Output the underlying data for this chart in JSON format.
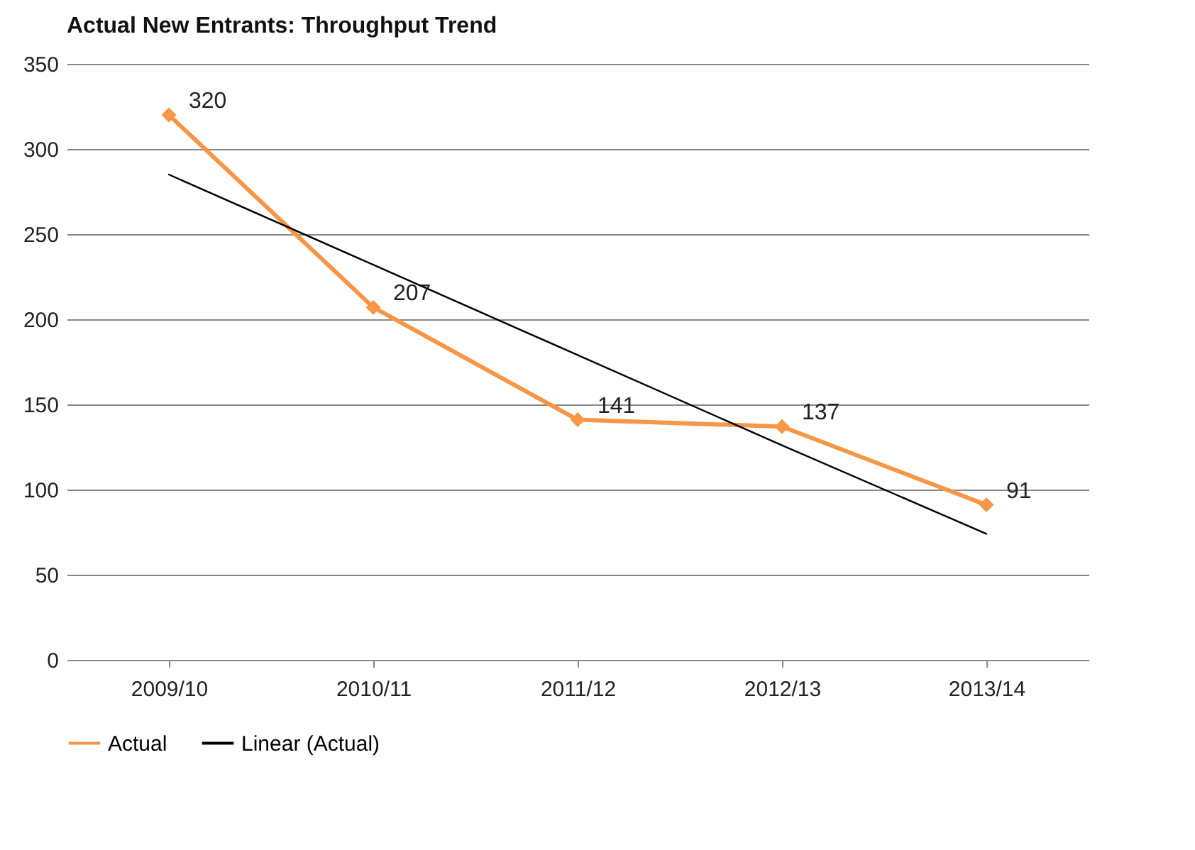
{
  "chart_data": {
    "type": "line",
    "title": "Actual New  Entrants: Throughput Trend",
    "categories": [
      "2009/10",
      "2010/11",
      "2011/12",
      "2012/13",
      "2013/14"
    ],
    "series": [
      {
        "name": "Actual",
        "color": "#f79646",
        "marker": "diamond",
        "values": [
          320,
          207,
          141,
          137,
          91
        ],
        "value_labels": [
          "320",
          "207",
          "141",
          "137",
          "91"
        ]
      },
      {
        "name": "Linear (Actual)",
        "color": "#000000",
        "marker": "none",
        "values": [
          285,
          232,
          179,
          126,
          74
        ]
      }
    ],
    "ylim": [
      0,
      350
    ],
    "yticks": [
      0,
      50,
      100,
      150,
      200,
      250,
      300,
      350
    ],
    "grid": "y",
    "legend": "bottom"
  }
}
